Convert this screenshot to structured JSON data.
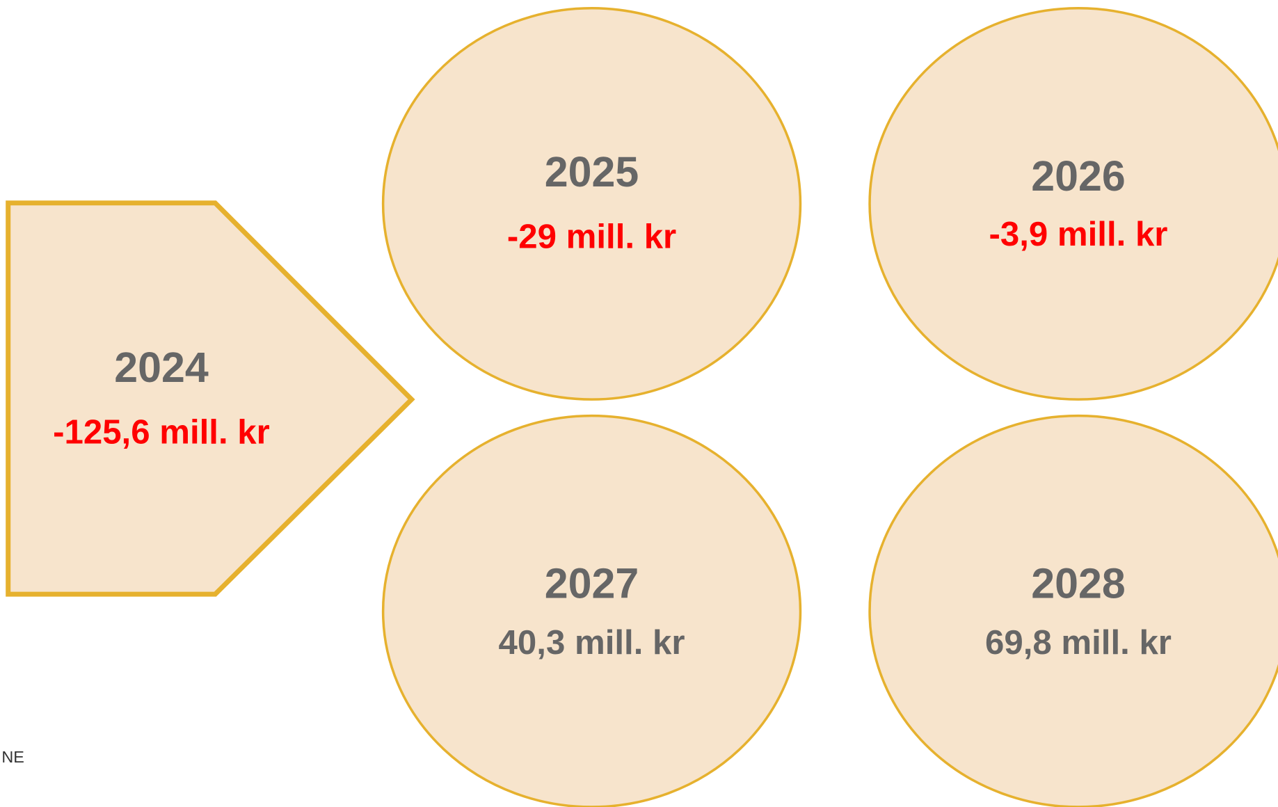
{
  "nodes": [
    {
      "year": "2024",
      "value": "-125,6 mill. kr",
      "color": "#ff0000"
    },
    {
      "year": "2025",
      "value": "-29 mill. kr",
      "color": "#ff0000"
    },
    {
      "year": "2026",
      "value": "-3,9 mill. kr",
      "color": "#ff0000"
    },
    {
      "year": "2027",
      "value": "40,3 mill. kr",
      "color": "#666666"
    },
    {
      "year": "2028",
      "value": "69,8 mill. kr",
      "color": "#666666"
    }
  ],
  "footer": "NE"
}
